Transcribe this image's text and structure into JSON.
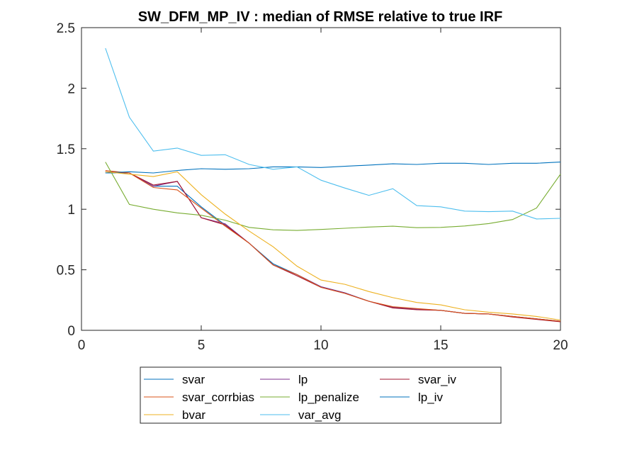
{
  "chart_data": {
    "type": "line",
    "title": "SW_DFM_MP_IV : median of RMSE relative to true IRF",
    "xlabel": "",
    "ylabel": "",
    "xlim": [
      0,
      20
    ],
    "ylim": [
      0,
      2.5
    ],
    "xticks": [
      0,
      5,
      10,
      15,
      20
    ],
    "yticks": [
      0,
      0.5,
      1,
      1.5,
      2,
      2.5
    ],
    "xtick_labels": [
      "0",
      "5",
      "10",
      "15",
      "20"
    ],
    "ytick_labels": [
      "0",
      "0.5",
      "1",
      "1.5",
      "2",
      "2.5"
    ],
    "grid": false,
    "legend_position": "bottom-outside",
    "x": [
      1,
      2,
      3,
      4,
      5,
      6,
      7,
      8,
      9,
      10,
      11,
      12,
      13,
      14,
      15,
      16,
      17,
      18,
      19,
      20
    ],
    "series": [
      {
        "name": "svar",
        "color": "#0072BD",
        "values": [
          1.3,
          1.3,
          1.19,
          1.19,
          1.02,
          0.87,
          0.72,
          0.55,
          0.46,
          0.36,
          0.31,
          0.24,
          0.19,
          0.175,
          0.165,
          0.14,
          0.135,
          0.115,
          0.095,
          0.075
        ]
      },
      {
        "name": "lp",
        "color": "#7E2F8E",
        "values": [
          1.31,
          1.3,
          1.19,
          1.23,
          0.93,
          0.88,
          0.72,
          0.54,
          0.46,
          0.36,
          0.31,
          0.24,
          0.19,
          0.175,
          0.165,
          0.14,
          0.135,
          0.115,
          0.095,
          0.075
        ]
      },
      {
        "name": "svar_iv",
        "color": "#A2142F",
        "values": [
          1.31,
          1.3,
          1.2,
          1.23,
          0.93,
          0.87,
          0.72,
          0.54,
          0.45,
          0.355,
          0.305,
          0.24,
          0.185,
          0.17,
          0.165,
          0.14,
          0.135,
          0.11,
          0.09,
          0.07
        ]
      },
      {
        "name": "svar_corrbias",
        "color": "#D95319",
        "values": [
          1.32,
          1.3,
          1.18,
          1.16,
          1.01,
          0.86,
          0.72,
          0.54,
          0.46,
          0.355,
          0.305,
          0.24,
          0.195,
          0.18,
          0.165,
          0.14,
          0.135,
          0.115,
          0.095,
          0.075
        ]
      },
      {
        "name": "lp_penalize",
        "color": "#77AC30",
        "values": [
          1.39,
          1.04,
          1.0,
          0.97,
          0.95,
          0.91,
          0.85,
          0.83,
          0.825,
          0.833,
          0.843,
          0.853,
          0.86,
          0.848,
          0.85,
          0.862,
          0.882,
          0.915,
          1.01,
          1.29
        ]
      },
      {
        "name": "lp_iv",
        "color": "#0072BD",
        "values": [
          1.3,
          1.31,
          1.3,
          1.32,
          1.335,
          1.33,
          1.335,
          1.35,
          1.35,
          1.345,
          1.355,
          1.365,
          1.375,
          1.37,
          1.38,
          1.38,
          1.37,
          1.38,
          1.38,
          1.39
        ]
      },
      {
        "name": "bvar",
        "color": "#EDB120",
        "values": [
          1.31,
          1.29,
          1.27,
          1.31,
          1.12,
          0.96,
          0.82,
          0.69,
          0.53,
          0.415,
          0.38,
          0.32,
          0.27,
          0.23,
          0.21,
          0.17,
          0.15,
          0.135,
          0.115,
          0.085
        ]
      },
      {
        "name": "var_avg",
        "color": "#4DBEEE",
        "values": [
          2.33,
          1.76,
          1.48,
          1.505,
          1.445,
          1.45,
          1.37,
          1.33,
          1.35,
          1.24,
          1.175,
          1.115,
          1.17,
          1.03,
          1.02,
          0.985,
          0.98,
          0.985,
          0.92,
          0.925
        ]
      }
    ]
  }
}
